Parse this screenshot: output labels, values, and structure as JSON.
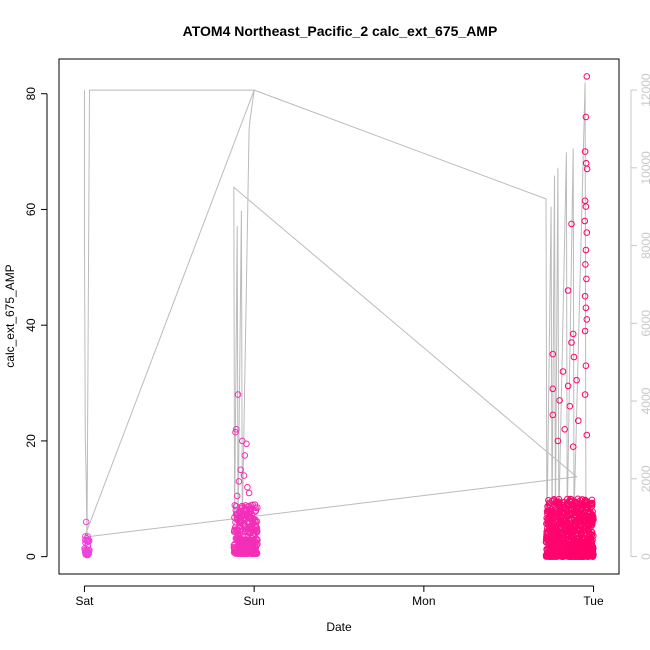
{
  "chart_data": {
    "type": "scatter",
    "title": "ATOM4 Northeast_Pacific_2 calc_ext_675_AMP",
    "xlabel": "Date",
    "ylabel": "calc_ext_675_AMP",
    "x_tick_labels": [
      "Sat",
      "Sun",
      "Mon",
      "Tue"
    ],
    "x_ticks_days": [
      0,
      1,
      2,
      3
    ],
    "xlim_days": [
      -0.15,
      3.15
    ],
    "ylim": [
      -3,
      86
    ],
    "y_ticks": [
      0,
      20,
      40,
      60,
      80
    ],
    "y2_ticks": [
      0,
      2000,
      4000,
      6000,
      8000,
      10000,
      12000
    ],
    "y2lim": [
      -450,
      12800
    ],
    "grid": false,
    "point_colors": {
      "start": "#ee44dd",
      "end": "#ff0066"
    },
    "line_color": "#bbbbbb",
    "series": [
      {
        "kind": "points",
        "clusters": [
          {
            "x_range": [
              0.0,
              0.03
            ],
            "n": 40,
            "y_low": 0.3,
            "y_high": 3.5,
            "extra": [
              [
                0.01,
                6.0
              ],
              [
                0.005,
                3.5
              ],
              [
                0.02,
                2.8
              ]
            ]
          },
          {
            "x_range": [
              0.88,
              1.02
            ],
            "n": 280,
            "y_low": 0.5,
            "y_high": 9.0,
            "extra": [
              [
                0.905,
                28.0
              ],
              [
                0.895,
                22.0
              ],
              [
                0.89,
                21.5
              ],
              [
                0.93,
                20.0
              ],
              [
                0.955,
                19.5
              ],
              [
                0.945,
                17.5
              ],
              [
                0.92,
                15.0
              ],
              [
                0.94,
                14.0
              ],
              [
                0.91,
                13.0
              ],
              [
                0.96,
                12.0
              ],
              [
                0.97,
                11.0
              ],
              [
                0.9,
                10.5
              ]
            ]
          },
          {
            "x_range": [
              2.72,
              3.0
            ],
            "n": 900,
            "y_low": 0.0,
            "y_high": 10.0,
            "extra": [
              [
                2.96,
                83.0
              ],
              [
                2.955,
                76.0
              ],
              [
                2.95,
                70.0
              ],
              [
                2.957,
                68.0
              ],
              [
                2.962,
                67.0
              ],
              [
                2.95,
                61.5
              ],
              [
                2.955,
                60.5
              ],
              [
                2.948,
                58.0
              ],
              [
                2.87,
                57.5
              ],
              [
                2.96,
                56.0
              ],
              [
                2.955,
                53.0
              ],
              [
                2.952,
                50.5
              ],
              [
                2.958,
                48.0
              ],
              [
                2.85,
                46.0
              ],
              [
                2.95,
                45.0
              ],
              [
                2.955,
                43.0
              ],
              [
                2.96,
                41.0
              ],
              [
                2.95,
                39.0
              ],
              [
                2.88,
                38.5
              ],
              [
                2.87,
                37.0
              ],
              [
                2.76,
                35.0
              ],
              [
                2.885,
                34.5
              ],
              [
                2.955,
                33.0
              ],
              [
                2.82,
                32.0
              ],
              [
                2.9,
                30.5
              ],
              [
                2.85,
                29.5
              ],
              [
                2.76,
                29.0
              ],
              [
                2.95,
                28.0
              ],
              [
                2.8,
                27.0
              ],
              [
                2.86,
                26.0
              ],
              [
                2.76,
                24.5
              ],
              [
                2.91,
                23.5
              ],
              [
                2.83,
                22.0
              ],
              [
                2.96,
                21.0
              ],
              [
                2.79,
                20.0
              ],
              [
                2.88,
                19.0
              ]
            ]
          }
        ]
      },
      {
        "kind": "line",
        "axis": "right",
        "points": [
          [
            0.0,
            12000
          ],
          [
            0.0,
            8000
          ],
          [
            0.005,
            3000
          ],
          [
            0.01,
            2000
          ],
          [
            0.015,
            500
          ],
          [
            0.03,
            12000
          ],
          [
            1.0,
            12000
          ],
          [
            0.0,
            500
          ],
          [
            2.9,
            2050
          ],
          [
            0.88,
            9500
          ],
          [
            0.885,
            800
          ],
          [
            0.9,
            8500
          ],
          [
            0.905,
            700
          ],
          [
            0.925,
            8900
          ],
          [
            0.93,
            800
          ],
          [
            0.97,
            11000
          ],
          [
            0.975,
            11200
          ],
          [
            1.0,
            12000
          ],
          [
            2.72,
            9200
          ],
          [
            2.725,
            600
          ],
          [
            2.75,
            9000
          ],
          [
            2.755,
            700
          ],
          [
            2.77,
            9800
          ],
          [
            2.775,
            800
          ],
          [
            2.79,
            10000
          ],
          [
            2.795,
            900
          ],
          [
            2.84,
            10400
          ],
          [
            2.845,
            900
          ],
          [
            2.88,
            10500
          ],
          [
            2.885,
            1000
          ],
          [
            2.95,
            12200
          ],
          [
            2.955,
            1200
          ]
        ]
      }
    ]
  }
}
